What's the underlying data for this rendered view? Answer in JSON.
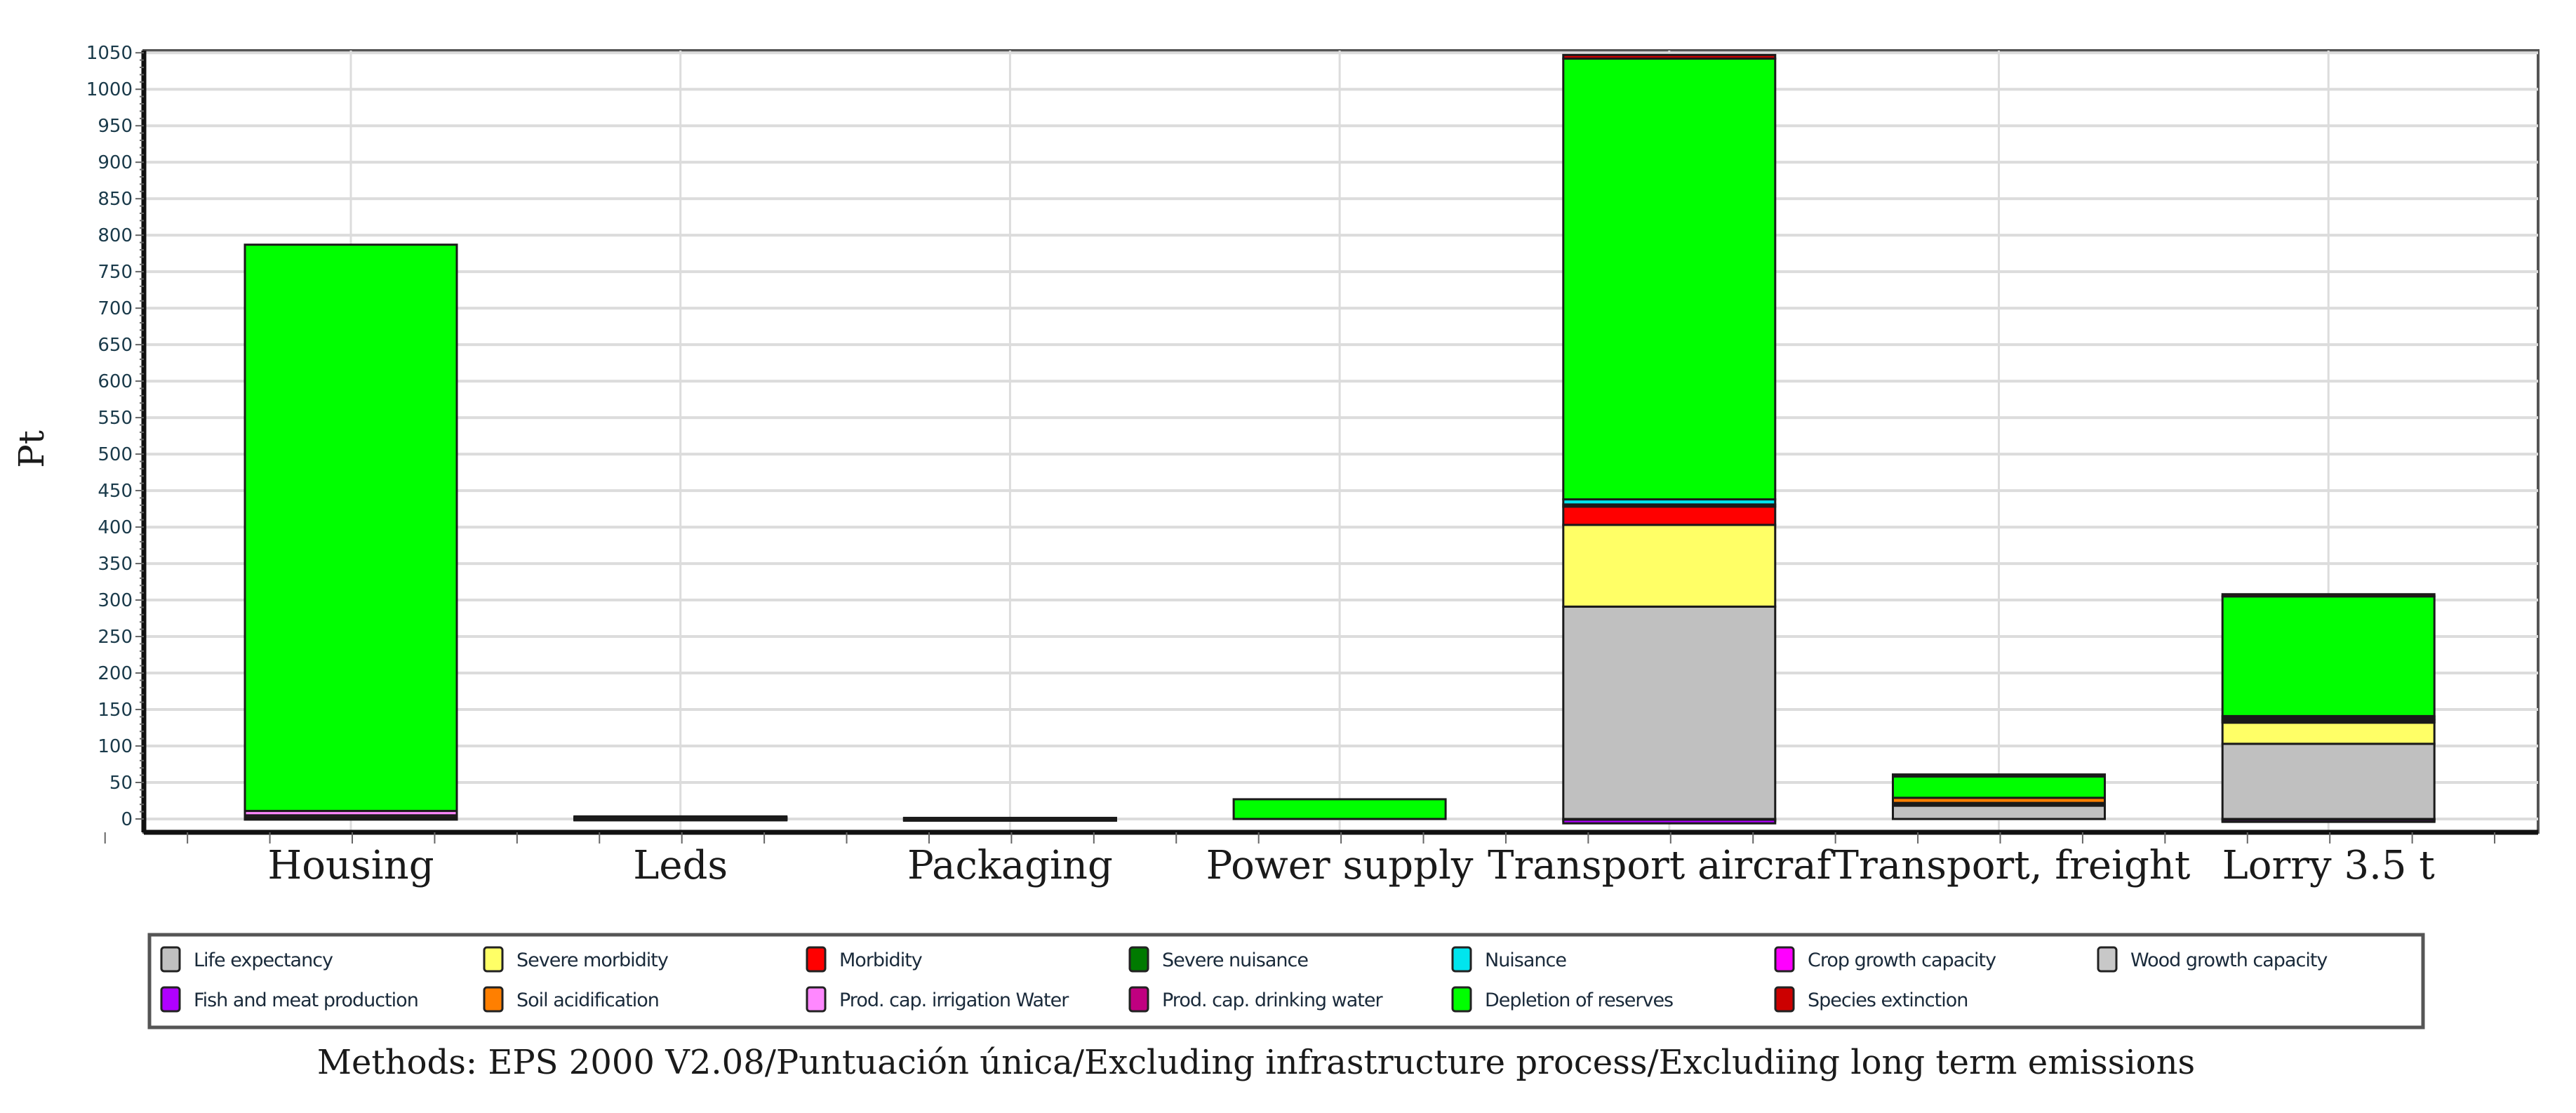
{
  "chart_data": {
    "type": "bar",
    "stacked": true,
    "title": "",
    "xlabel": "",
    "ylabel": "Pt",
    "ylim": [
      -10,
      1050
    ],
    "yticks": [
      0,
      50,
      100,
      150,
      200,
      250,
      300,
      350,
      400,
      450,
      500,
      550,
      600,
      650,
      700,
      750,
      800,
      850,
      900,
      950,
      1000,
      1050
    ],
    "grid": true,
    "legend_position": "bottom",
    "categories": [
      "Housing",
      "Leds",
      "Packaging",
      "Power supply",
      "Transport aircraf",
      "Transport, freight",
      "Lorry 3.5 t"
    ],
    "series": [
      {
        "name": "Life expectancy",
        "color": "#c0c0c0",
        "values": [
          0,
          0,
          0,
          0,
          291,
          19,
          103
        ]
      },
      {
        "name": "Severe morbidity",
        "color": "#ffff66",
        "values": [
          0,
          0,
          0,
          0,
          112,
          0,
          29
        ]
      },
      {
        "name": "Morbidity",
        "color": "#ff0000",
        "values": [
          0,
          1,
          0.5,
          0,
          25,
          2,
          3
        ]
      },
      {
        "name": "Severe nuisance",
        "color": "#007a00",
        "values": [
          0,
          0,
          0,
          0,
          3,
          0,
          1
        ]
      },
      {
        "name": "Nuisance",
        "color": "#00e5ee",
        "values": [
          0,
          0,
          0,
          0,
          7,
          0,
          3
        ]
      },
      {
        "name": "Crop growth capacity",
        "color": "#ff00ff",
        "values": [
          0,
          0,
          0,
          0,
          -1,
          0,
          -1
        ]
      },
      {
        "name": "Wood growth capacity",
        "color": "#c8c8c8",
        "values": [
          0,
          0,
          0,
          0,
          0,
          0,
          0
        ]
      },
      {
        "name": "Fish and meat production",
        "color": "#b000ff",
        "values": [
          2,
          0.5,
          0,
          0,
          -5,
          1,
          -3
        ]
      },
      {
        "name": "Soil acidification",
        "color": "#ff7f00",
        "values": [
          3,
          0.5,
          0.5,
          0,
          0,
          7,
          2
        ]
      },
      {
        "name": "Prod. cap. irrigation Water",
        "color": "#ff88ff",
        "values": [
          6,
          0.5,
          0,
          0,
          0,
          0,
          0
        ]
      },
      {
        "name": "Prod. cap. drinking water",
        "color": "#c00080",
        "values": [
          0,
          0,
          0,
          0,
          0,
          0,
          0
        ]
      },
      {
        "name": "Depletion of reserves",
        "color": "#00ff00",
        "values": [
          776,
          0,
          0,
          27,
          604,
          30,
          164
        ]
      },
      {
        "name": "Species extinction",
        "color": "#cc0000",
        "values": [
          0,
          1,
          0.5,
          0,
          5,
          2,
          3
        ]
      }
    ],
    "totals_approx": [
      787,
      3,
      1.5,
      27,
      1048,
      60,
      309
    ]
  },
  "legend": {
    "rows": [
      [
        "Life expectancy",
        "Severe morbidity",
        "Morbidity",
        "Severe nuisance",
        "Nuisance",
        "Crop growth capacity",
        "Wood growth capacity"
      ],
      [
        "Fish and meat production",
        "Soil acidification",
        "Prod. cap. irrigation Water",
        "Prod. cap. drinking water",
        "Depletion of reserves",
        "Species extinction"
      ]
    ]
  },
  "caption": "Methods: EPS 2000 V2.08/Puntuación única/Excluding infrastructure process/Excludiing long term emissions",
  "colors": {
    "grid": "#dcdcdc",
    "axis": "#111111",
    "bar_outline": "#1a1a1a",
    "frame": "#555555"
  }
}
